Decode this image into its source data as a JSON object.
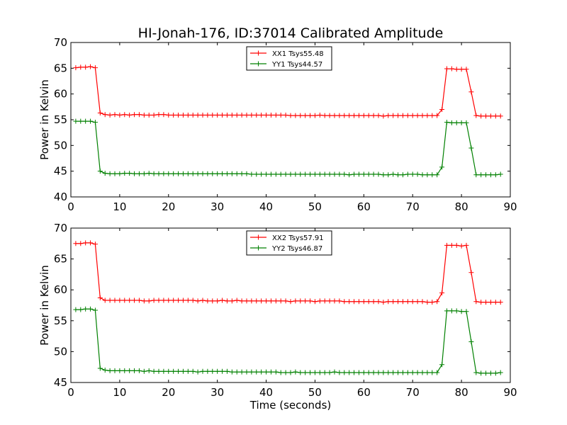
{
  "figure": {
    "title": "HI-Jonah-176, ID:37014 Calibrated Amplitude",
    "xlabel": "Time (seconds)"
  },
  "chart_data": [
    {
      "type": "line",
      "ylabel": "Power in Kelvin",
      "xlim": [
        0,
        90
      ],
      "ylim": [
        40,
        70
      ],
      "xticks": [
        0,
        10,
        20,
        30,
        40,
        50,
        60,
        70,
        80,
        90
      ],
      "yticks": [
        40,
        45,
        50,
        55,
        60,
        65,
        70
      ],
      "grid": false,
      "legend": "top-center",
      "x": [
        1,
        2,
        3,
        4,
        5,
        6,
        7,
        8,
        9,
        10,
        11,
        12,
        13,
        14,
        15,
        16,
        17,
        18,
        19,
        20,
        21,
        22,
        23,
        24,
        25,
        26,
        27,
        28,
        29,
        30,
        31,
        32,
        33,
        34,
        35,
        36,
        37,
        38,
        39,
        40,
        41,
        42,
        43,
        44,
        45,
        46,
        47,
        48,
        49,
        50,
        51,
        52,
        53,
        54,
        55,
        56,
        57,
        58,
        59,
        60,
        61,
        62,
        63,
        64,
        65,
        66,
        67,
        68,
        69,
        70,
        71,
        72,
        73,
        74,
        75,
        76,
        77,
        78,
        79,
        80,
        81,
        82,
        83,
        84,
        85,
        86,
        87,
        88
      ],
      "series": [
        {
          "name": "XX1 Tsys55.48",
          "color": "#ff0000",
          "values": [
            65.1,
            65.2,
            65.2,
            65.3,
            65.1,
            56.3,
            56.0,
            55.9,
            56.0,
            55.9,
            56.0,
            55.9,
            56.0,
            56.0,
            55.9,
            55.9,
            55.9,
            56.0,
            56.0,
            55.9,
            55.9,
            55.9,
            55.9,
            55.9,
            55.9,
            55.9,
            55.9,
            55.9,
            55.9,
            55.9,
            55.9,
            55.9,
            55.9,
            55.9,
            55.9,
            55.9,
            55.9,
            55.9,
            55.9,
            55.9,
            55.9,
            55.9,
            55.9,
            55.9,
            55.8,
            55.8,
            55.8,
            55.8,
            55.8,
            55.8,
            55.9,
            55.8,
            55.8,
            55.8,
            55.8,
            55.8,
            55.8,
            55.8,
            55.8,
            55.8,
            55.8,
            55.8,
            55.8,
            55.7,
            55.8,
            55.8,
            55.8,
            55.8,
            55.8,
            55.8,
            55.8,
            55.8,
            55.8,
            55.8,
            55.8,
            57.0,
            64.9,
            64.9,
            64.8,
            64.8,
            64.8,
            60.4,
            55.8,
            55.7,
            55.7,
            55.7,
            55.7,
            55.7
          ]
        },
        {
          "name": "YY1 Tsys44.57",
          "color": "#008000",
          "values": [
            54.7,
            54.7,
            54.7,
            54.7,
            54.5,
            45.0,
            44.6,
            44.5,
            44.5,
            44.5,
            44.6,
            44.6,
            44.5,
            44.5,
            44.5,
            44.6,
            44.5,
            44.5,
            44.5,
            44.5,
            44.5,
            44.5,
            44.5,
            44.5,
            44.5,
            44.5,
            44.5,
            44.5,
            44.5,
            44.5,
            44.5,
            44.5,
            44.5,
            44.5,
            44.5,
            44.5,
            44.4,
            44.4,
            44.4,
            44.4,
            44.4,
            44.4,
            44.4,
            44.4,
            44.4,
            44.4,
            44.4,
            44.4,
            44.4,
            44.4,
            44.4,
            44.4,
            44.4,
            44.4,
            44.4,
            44.4,
            44.3,
            44.4,
            44.4,
            44.4,
            44.4,
            44.4,
            44.4,
            44.3,
            44.3,
            44.4,
            44.3,
            44.3,
            44.4,
            44.4,
            44.4,
            44.3,
            44.3,
            44.3,
            44.3,
            45.8,
            54.5,
            54.4,
            54.4,
            54.4,
            54.4,
            49.5,
            44.3,
            44.3,
            44.3,
            44.3,
            44.3,
            44.4
          ]
        }
      ]
    },
    {
      "type": "line",
      "ylabel": "Power in Kelvin",
      "xlim": [
        0,
        90
      ],
      "ylim": [
        45,
        70
      ],
      "xticks": [
        0,
        10,
        20,
        30,
        40,
        50,
        60,
        70,
        80,
        90
      ],
      "yticks": [
        45,
        50,
        55,
        60,
        65,
        70
      ],
      "grid": false,
      "legend": "top-center",
      "x": [
        1,
        2,
        3,
        4,
        5,
        6,
        7,
        8,
        9,
        10,
        11,
        12,
        13,
        14,
        15,
        16,
        17,
        18,
        19,
        20,
        21,
        22,
        23,
        24,
        25,
        26,
        27,
        28,
        29,
        30,
        31,
        32,
        33,
        34,
        35,
        36,
        37,
        38,
        39,
        40,
        41,
        42,
        43,
        44,
        45,
        46,
        47,
        48,
        49,
        50,
        51,
        52,
        53,
        54,
        55,
        56,
        57,
        58,
        59,
        60,
        61,
        62,
        63,
        64,
        65,
        66,
        67,
        68,
        69,
        70,
        71,
        72,
        73,
        74,
        75,
        76,
        77,
        78,
        79,
        80,
        81,
        82,
        83,
        84,
        85,
        86,
        87,
        88
      ],
      "series": [
        {
          "name": "XX2 Tsys57.91",
          "color": "#ff0000",
          "values": [
            67.5,
            67.5,
            67.6,
            67.6,
            67.4,
            58.7,
            58.3,
            58.3,
            58.3,
            58.3,
            58.3,
            58.3,
            58.3,
            58.3,
            58.2,
            58.2,
            58.3,
            58.3,
            58.3,
            58.3,
            58.3,
            58.3,
            58.3,
            58.3,
            58.3,
            58.2,
            58.3,
            58.2,
            58.2,
            58.2,
            58.3,
            58.2,
            58.2,
            58.3,
            58.2,
            58.2,
            58.2,
            58.2,
            58.2,
            58.2,
            58.2,
            58.2,
            58.2,
            58.2,
            58.1,
            58.2,
            58.2,
            58.2,
            58.2,
            58.1,
            58.2,
            58.2,
            58.2,
            58.2,
            58.2,
            58.1,
            58.1,
            58.1,
            58.1,
            58.1,
            58.1,
            58.1,
            58.1,
            58.0,
            58.1,
            58.1,
            58.1,
            58.1,
            58.1,
            58.1,
            58.1,
            58.1,
            58.0,
            58.0,
            58.1,
            59.5,
            67.2,
            67.2,
            67.2,
            67.1,
            67.2,
            62.8,
            58.1,
            58.0,
            58.0,
            58.0,
            58.0,
            58.0
          ]
        },
        {
          "name": "YY2 Tsys46.87",
          "color": "#008000",
          "values": [
            56.8,
            56.8,
            56.9,
            56.9,
            56.7,
            47.3,
            47.0,
            46.9,
            46.9,
            46.9,
            46.9,
            46.9,
            46.9,
            46.9,
            46.8,
            46.9,
            46.8,
            46.8,
            46.8,
            46.8,
            46.8,
            46.8,
            46.8,
            46.8,
            46.8,
            46.7,
            46.8,
            46.8,
            46.8,
            46.8,
            46.8,
            46.8,
            46.7,
            46.7,
            46.7,
            46.7,
            46.7,
            46.7,
            46.7,
            46.7,
            46.7,
            46.7,
            46.6,
            46.6,
            46.6,
            46.7,
            46.6,
            46.6,
            46.6,
            46.6,
            46.6,
            46.6,
            46.6,
            46.7,
            46.6,
            46.6,
            46.6,
            46.6,
            46.6,
            46.6,
            46.6,
            46.6,
            46.6,
            46.6,
            46.6,
            46.6,
            46.6,
            46.6,
            46.6,
            46.6,
            46.6,
            46.6,
            46.6,
            46.6,
            46.6,
            47.9,
            56.6,
            56.6,
            56.6,
            56.5,
            56.5,
            51.6,
            46.6,
            46.5,
            46.5,
            46.5,
            46.5,
            46.6
          ]
        }
      ]
    }
  ]
}
